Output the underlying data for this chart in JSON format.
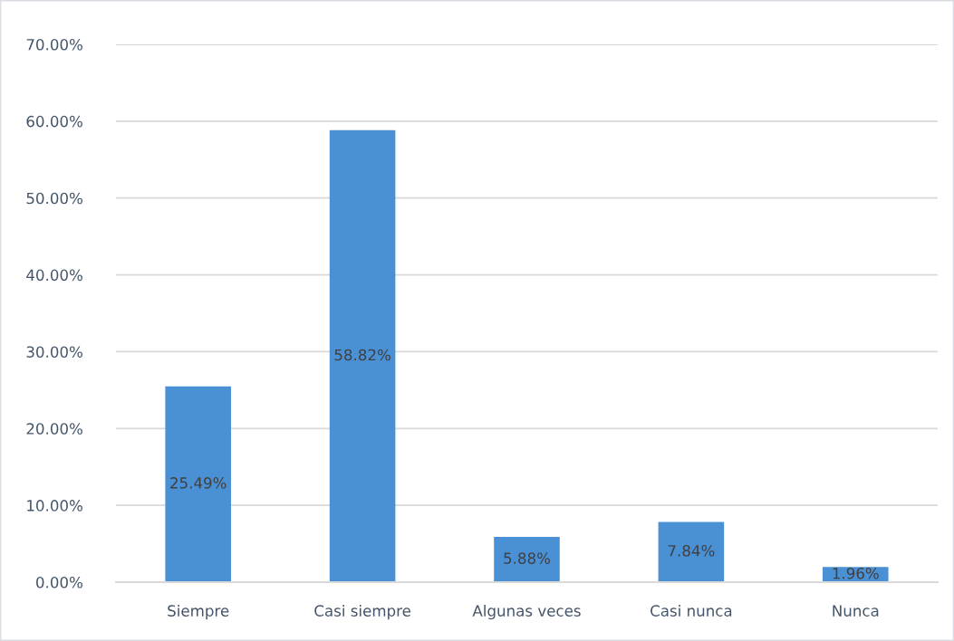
{
  "chart_data": {
    "type": "bar",
    "categories": [
      "Siempre",
      "Casi siempre",
      "Algunas veces",
      "Casi nunca",
      "Nunca"
    ],
    "values": [
      25.49,
      58.82,
      5.88,
      7.84,
      1.96
    ],
    "value_labels": [
      "25.49%",
      "58.82%",
      "5.88%",
      "7.84%",
      "1.96%"
    ],
    "color": "#4a90d4",
    "ylim": [
      0,
      70
    ],
    "yticks": [
      {
        "value": 0,
        "label": "0.00%"
      },
      {
        "value": 10,
        "label": "10.00%"
      },
      {
        "value": 20,
        "label": "20.00%"
      },
      {
        "value": 30,
        "label": "30.00%"
      },
      {
        "value": 40,
        "label": "40.00%"
      },
      {
        "value": 50,
        "label": "50.00%"
      },
      {
        "value": 60,
        "label": "60.00%"
      },
      {
        "value": 70,
        "label": "70.00%"
      }
    ],
    "grid": "y",
    "legend": false
  }
}
